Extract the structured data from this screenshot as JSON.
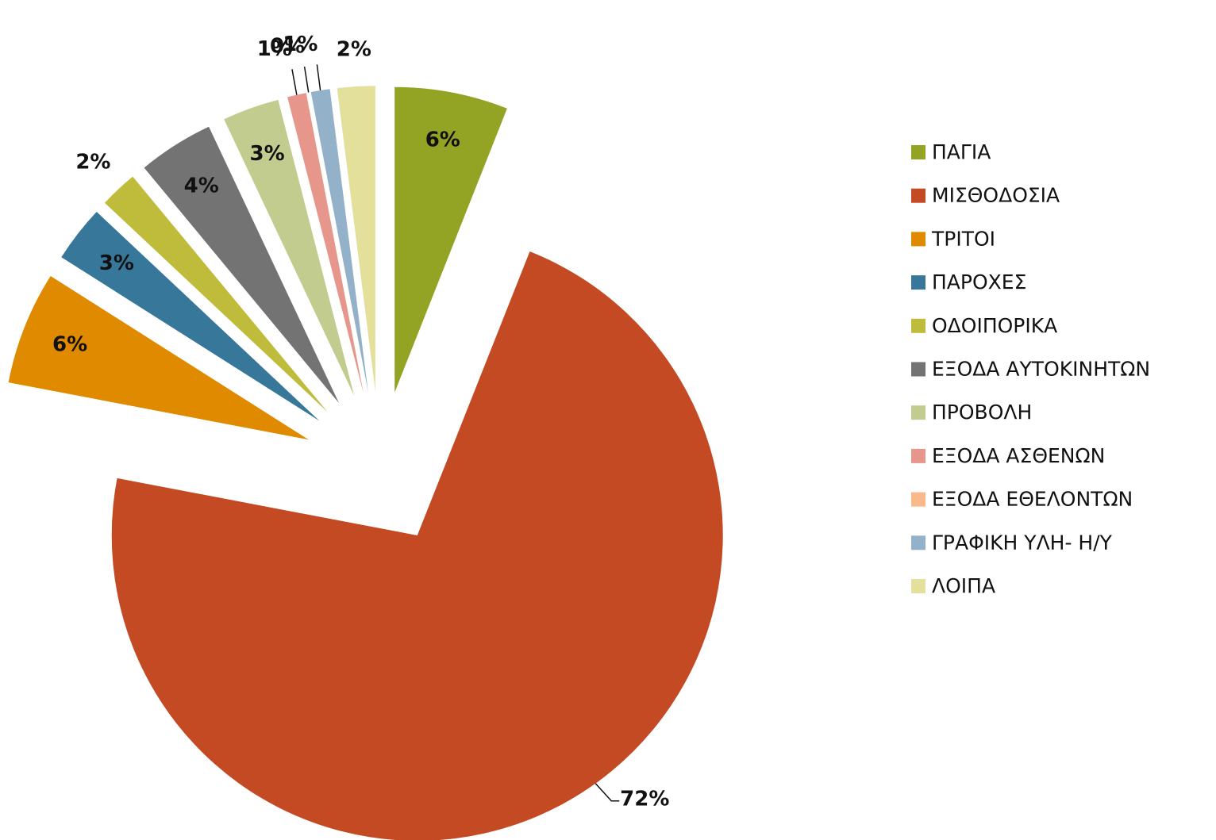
{
  "chart_data": {
    "type": "pie",
    "categories": [
      "ΠΑΓΙΑ",
      "ΜΙΣΘΟΔΟΣΙΑ",
      "ΤΡΙΤΟΙ",
      "ΠΑΡΟΧΕΣ",
      "ΟΔΟΙΠΟΡΙΚΑ",
      "ΕΞΟΔΑ ΑΥΤΟΚΙΝΗΤΩΝ",
      "ΠΡΟΒΟΛΗ",
      "ΕΞΟΔΑ ΑΣΘΕΝΩΝ",
      "ΕΞΟΔΑ ΕΘΕΛΟΝΤΩΝ",
      "ΓΡΑΦΙΚΗ ΥΛΗ- Η/Υ",
      "ΛΟΙΠΑ"
    ],
    "values": [
      6,
      72,
      6,
      3,
      2,
      4,
      3,
      1,
      0,
      1,
      2
    ],
    "value_labels": [
      "6%",
      "72%",
      "6%",
      "3%",
      "2%",
      "4%",
      "3%",
      "1%",
      "0%",
      "1%",
      "2%"
    ],
    "colors": [
      "#93a323",
      "#c44a23",
      "#e08a00",
      "#37789a",
      "#bfbb3b",
      "#737373",
      "#c2cc8e",
      "#e6968a",
      "#f9b98a",
      "#93b1c8",
      "#e2e09b"
    ],
    "legend": "right"
  }
}
